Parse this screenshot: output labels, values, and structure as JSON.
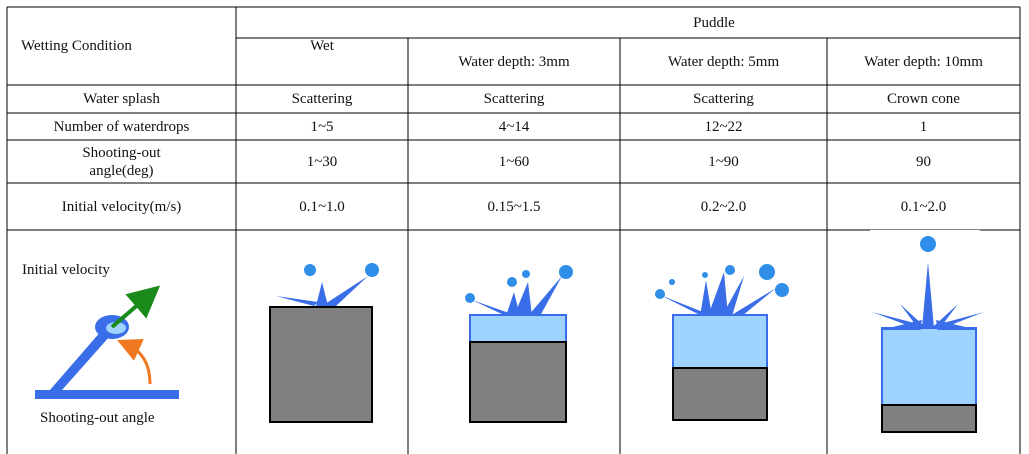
{
  "table": {
    "header": {
      "row_label": "Wetting Condition",
      "wet": "Wet",
      "puddle": "Puddle",
      "depths": [
        "Water depth: 3mm",
        "Water depth: 5mm",
        "Water depth: 10mm"
      ]
    },
    "rows": [
      {
        "label": "Water splash",
        "cells": [
          "Scattering",
          "Scattering",
          "Scattering",
          "Crown cone"
        ]
      },
      {
        "label": "Number of waterdrops",
        "cells": [
          "1~5",
          "4~14",
          "12~22",
          "1"
        ]
      },
      {
        "label": "Shooting-out angle(deg)",
        "cells": [
          "1~30",
          "1~60",
          "1~90",
          "90"
        ]
      },
      {
        "label": "Initial velocity(m/s)",
        "cells": [
          "0.1~1.0",
          "0.15~1.5",
          "0.2~2.0",
          "0.1~2.0"
        ]
      }
    ],
    "illustration": {
      "velocity_label": "Initial velocity",
      "angle_label": "Shooting-out angle"
    }
  }
}
